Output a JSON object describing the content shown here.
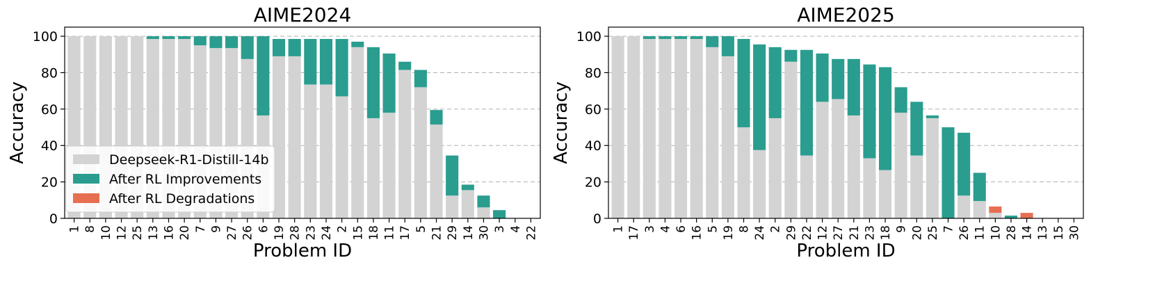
{
  "colors": {
    "base": "#d3d3d3",
    "improvement": "#2a9d8f",
    "degradation": "#e76f51"
  },
  "legend": {
    "base": "Deepseek-R1-Distill-14b",
    "improvement": "After RL Improvements",
    "degradation": "After RL Degradations"
  },
  "chart_data": [
    {
      "type": "bar",
      "title": "AIME2024",
      "xlabel": "Problem ID",
      "ylabel": "Accuracy",
      "ylim": [
        0,
        105
      ],
      "yticks": [
        0,
        20,
        40,
        60,
        80,
        100
      ],
      "grid": true,
      "legend_position": "lower-left",
      "categories": [
        "1",
        "8",
        "10",
        "12",
        "25",
        "13",
        "16",
        "20",
        "7",
        "9",
        "27",
        "26",
        "6",
        "19",
        "28",
        "23",
        "24",
        "2",
        "15",
        "18",
        "11",
        "17",
        "5",
        "21",
        "29",
        "14",
        "30",
        "3",
        "4",
        "22"
      ],
      "series": [
        {
          "name": "Deepseek-R1-Distill-14b",
          "values": [
            100,
            100,
            100,
            100,
            100,
            98.5,
            98.5,
            98.5,
            95,
            93.5,
            93.5,
            87.5,
            56.5,
            89,
            89,
            73.5,
            73.5,
            67,
            94,
            55,
            58,
            81.5,
            72,
            51.5,
            12.5,
            15.5,
            6,
            0,
            0,
            0
          ]
        },
        {
          "name": "After RL",
          "values": [
            100,
            100,
            100,
            100,
            100,
            100,
            100,
            100,
            100,
            100,
            100,
            100,
            100,
            98.5,
            98.5,
            98.5,
            98.5,
            98.5,
            97,
            94,
            90.5,
            86,
            81.5,
            59.5,
            34.5,
            18.5,
            12.5,
            4.5,
            0,
            0
          ]
        }
      ]
    },
    {
      "type": "bar",
      "title": "AIME2025",
      "xlabel": "Problem ID",
      "ylabel": "Accuracy",
      "ylim": [
        0,
        105
      ],
      "yticks": [
        0,
        20,
        40,
        60,
        80,
        100
      ],
      "grid": true,
      "categories": [
        "1",
        "17",
        "3",
        "4",
        "6",
        "16",
        "5",
        "19",
        "8",
        "24",
        "2",
        "29",
        "22",
        "12",
        "27",
        "21",
        "23",
        "18",
        "9",
        "20",
        "25",
        "7",
        "26",
        "11",
        "10",
        "28",
        "14",
        "13",
        "15",
        "30"
      ],
      "series": [
        {
          "name": "Deepseek-R1-Distill-14b",
          "values": [
            100,
            100,
            98.5,
            98.5,
            98.5,
            98.5,
            94,
            89,
            50,
            37.5,
            55,
            86,
            34.5,
            64,
            65.5,
            56.5,
            33,
            26.5,
            58,
            34.5,
            55,
            0,
            12.5,
            9.5,
            6.5,
            0,
            3,
            0,
            0,
            0
          ]
        },
        {
          "name": "After RL",
          "values": [
            100,
            100,
            100,
            100,
            100,
            100,
            100,
            100,
            98.5,
            95.5,
            94,
            92.5,
            92.5,
            90.5,
            87.5,
            87.5,
            84.5,
            83,
            72,
            64,
            56.5,
            50,
            47,
            25,
            3,
            1.5,
            0,
            0,
            0,
            0
          ]
        }
      ]
    }
  ]
}
